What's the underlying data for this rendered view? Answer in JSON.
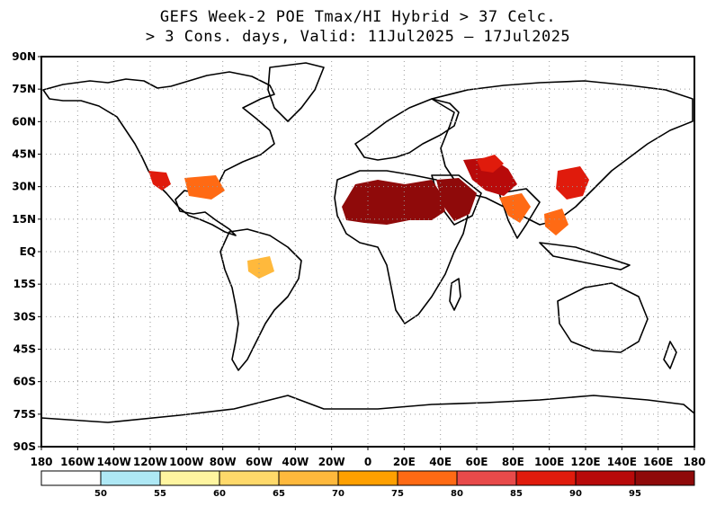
{
  "title_line1": "GEFS Week-2 POE Tmax/HI Hybrid > 37 Celc.",
  "title_line2": "> 3 Cons. days, Valid: 11Jul2025 – 17Jul2025",
  "lat_labels": [
    "90N",
    "75N",
    "60N",
    "45N",
    "30N",
    "15N",
    "EQ",
    "15S",
    "30S",
    "45S",
    "60S",
    "75S",
    "90S"
  ],
  "lon_labels": [
    "180",
    "160W",
    "140W",
    "120W",
    "100W",
    "80W",
    "60W",
    "40W",
    "20W",
    "0",
    "20E",
    "40E",
    "60E",
    "80E",
    "100E",
    "120E",
    "140E",
    "160E",
    "180"
  ],
  "colorbar": {
    "colors": [
      "#ffffff",
      "#aee8f5",
      "#fff5a0",
      "#ffd96a",
      "#ffb93c",
      "#ffa000",
      "#ff6a14",
      "#e84a4a",
      "#e01b0c",
      "#b80a0a",
      "#8f0a0a"
    ],
    "labels": [
      "50",
      "55",
      "60",
      "65",
      "70",
      "75",
      "80",
      "85",
      "90",
      "95"
    ]
  }
}
